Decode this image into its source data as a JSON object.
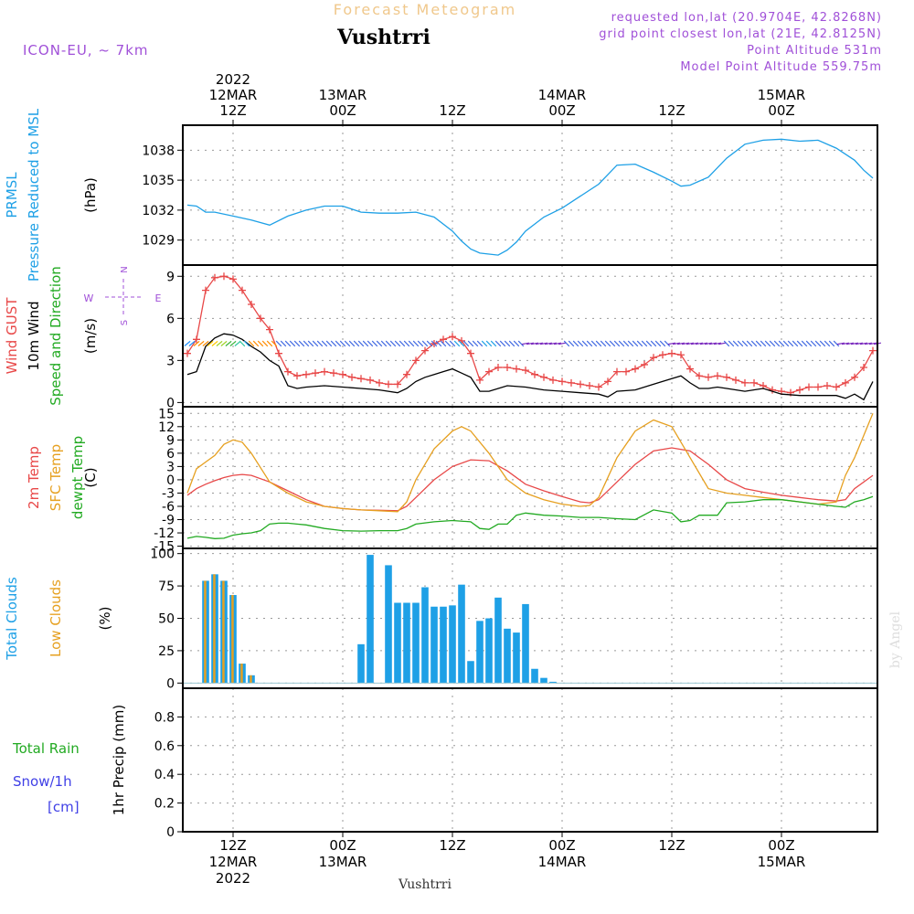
{
  "header": {
    "product": "Forecast Meteogram",
    "location": "Vushtrri",
    "model": "ICON-EU, ~ 7km",
    "requested": "requested lon,lat (20.9704E, 42.8268N)",
    "gridpoint": "grid point closest lon,lat (21E, 42.8125N)",
    "point_alt": "Point Altitude 531m",
    "model_alt": "Model Point Altitude 559.75m",
    "footer_location": "Vushtrri",
    "credit": "by Angel"
  },
  "time_axis": {
    "top": [
      {
        "t": 12,
        "l1": "2022",
        "l2": "12MAR",
        "l3": "12Z"
      },
      {
        "t": 24,
        "l1": "",
        "l2": "13MAR",
        "l3": "00Z"
      },
      {
        "t": 36,
        "l1": "",
        "l2": "",
        "l3": "12Z"
      },
      {
        "t": 48,
        "l1": "",
        "l2": "14MAR",
        "l3": "00Z"
      },
      {
        "t": 60,
        "l1": "",
        "l2": "",
        "l3": "12Z"
      },
      {
        "t": 72,
        "l1": "",
        "l2": "15MAR",
        "l3": "00Z"
      }
    ],
    "bottom": [
      {
        "t": 12,
        "l1": "12Z",
        "l2": "12MAR",
        "l3": "2022"
      },
      {
        "t": 24,
        "l1": "00Z",
        "l2": "13MAR",
        "l3": ""
      },
      {
        "t": 36,
        "l1": "12Z",
        "l2": "",
        "l3": ""
      },
      {
        "t": 48,
        "l1": "00Z",
        "l2": "14MAR",
        "l3": ""
      },
      {
        "t": 60,
        "l1": "12Z",
        "l2": "",
        "l3": ""
      },
      {
        "t": 72,
        "l1": "00Z",
        "l2": "15MAR",
        "l3": ""
      }
    ]
  },
  "chart_data": [
    {
      "type": "line",
      "id": "pressure",
      "ylabels": [
        {
          "text": "PRMSL",
          "color": "#1ea0e6"
        },
        {
          "text": "Pressure Reduced to MSL",
          "color": "#1ea0e6"
        }
      ],
      "unit": "(hPa)",
      "ylim": [
        1026.5,
        1040.5
      ],
      "yticks": [
        1029,
        1032,
        1035,
        1038
      ],
      "grid": true,
      "series": [
        {
          "color": "#1ea0e6",
          "x": [
            7,
            8,
            9,
            10,
            12,
            14,
            16,
            18,
            20,
            22,
            24,
            26,
            28,
            30,
            32,
            34,
            36,
            37,
            38,
            39,
            40,
            41,
            42,
            43,
            44,
            46,
            48,
            50,
            52,
            54,
            56,
            58,
            60,
            61,
            62,
            64,
            66,
            68,
            70,
            72,
            74,
            76,
            78,
            80,
            81,
            82
          ],
          "y": [
            1032.5,
            1032.4,
            1031.8,
            1031.8,
            1031.4,
            1031.0,
            1030.5,
            1031.4,
            1032.0,
            1032.4,
            1032.4,
            1031.8,
            1031.7,
            1031.7,
            1031.8,
            1031.3,
            1029.9,
            1028.9,
            1028.1,
            1027.7,
            1027.6,
            1027.5,
            1028.0,
            1028.8,
            1029.9,
            1031.3,
            1032.2,
            1033.4,
            1034.6,
            1036.5,
            1036.6,
            1035.8,
            1034.9,
            1034.4,
            1034.5,
            1035.3,
            1037.2,
            1038.6,
            1039.0,
            1039.1,
            1038.9,
            1039.0,
            1038.2,
            1037.0,
            1036.0,
            1035.2
          ]
        }
      ]
    },
    {
      "type": "line",
      "id": "wind",
      "ylabels": [
        {
          "text": "Wind GUST",
          "color": "#e84848"
        },
        {
          "text": "10m Wind",
          "color": "#000000"
        },
        {
          "text": "Speed and Direction",
          "color": "#22aa22"
        }
      ],
      "unit": "(m/s)",
      "compass": {
        "n": "N",
        "s": "S",
        "w": "W",
        "e": "E"
      },
      "ylim": [
        -0.3,
        9.8
      ],
      "yticks": [
        0,
        3,
        6,
        9
      ],
      "grid": true,
      "series": [
        {
          "name": "gust",
          "color": "#e84848",
          "markers": true,
          "x": [
            7,
            8,
            9,
            10,
            11,
            12,
            13,
            14,
            15,
            16,
            17,
            18,
            19,
            20,
            21,
            22,
            23,
            24,
            25,
            26,
            27,
            28,
            29,
            30,
            31,
            32,
            33,
            34,
            35,
            36,
            37,
            38,
            39,
            40,
            41,
            42,
            43,
            44,
            45,
            46,
            47,
            48,
            49,
            50,
            51,
            52,
            53,
            54,
            55,
            56,
            57,
            58,
            59,
            60,
            61,
            62,
            63,
            64,
            65,
            66,
            67,
            68,
            69,
            70,
            71,
            72,
            73,
            74,
            75,
            76,
            77,
            78,
            79,
            80,
            81,
            82
          ],
          "y": [
            3.5,
            4.5,
            8.0,
            8.9,
            9.0,
            8.8,
            8.0,
            7.0,
            6.0,
            5.2,
            3.5,
            2.2,
            1.9,
            2.0,
            2.1,
            2.2,
            2.1,
            2.0,
            1.8,
            1.7,
            1.6,
            1.4,
            1.3,
            1.3,
            2.0,
            3.0,
            3.7,
            4.2,
            4.5,
            4.7,
            4.4,
            3.5,
            1.6,
            2.2,
            2.5,
            2.5,
            2.4,
            2.3,
            2.0,
            1.8,
            1.6,
            1.5,
            1.4,
            1.3,
            1.2,
            1.1,
            1.5,
            2.2,
            2.2,
            2.4,
            2.7,
            3.2,
            3.4,
            3.5,
            3.4,
            2.4,
            1.9,
            1.8,
            1.9,
            1.8,
            1.6,
            1.4,
            1.4,
            1.2,
            0.9,
            0.8,
            0.7,
            0.9,
            1.1,
            1.1,
            1.2,
            1.1,
            1.4,
            1.8,
            2.5,
            3.7
          ]
        },
        {
          "name": "wind10m",
          "color": "#000000",
          "markers": false,
          "x": [
            7,
            8,
            9,
            10,
            11,
            12,
            13,
            14,
            15,
            16,
            17,
            18,
            19,
            20,
            22,
            24,
            26,
            28,
            30,
            31,
            32,
            33,
            34,
            35,
            36,
            37,
            38,
            39,
            40,
            42,
            44,
            46,
            48,
            50,
            52,
            53,
            54,
            56,
            58,
            60,
            61,
            62,
            63,
            64,
            65,
            66,
            68,
            70,
            72,
            74,
            76,
            78,
            79,
            80,
            81,
            82
          ],
          "y": [
            2.0,
            2.2,
            4.0,
            4.6,
            4.9,
            4.8,
            4.5,
            4.0,
            3.6,
            3.0,
            2.6,
            1.2,
            1.0,
            1.1,
            1.2,
            1.1,
            1.0,
            0.9,
            0.7,
            1.0,
            1.5,
            1.8,
            2.0,
            2.2,
            2.4,
            2.1,
            1.8,
            0.8,
            0.8,
            1.2,
            1.1,
            0.9,
            0.8,
            0.7,
            0.6,
            0.4,
            0.8,
            0.9,
            1.3,
            1.7,
            1.9,
            1.4,
            1.0,
            1.0,
            1.1,
            1.0,
            0.8,
            1.0,
            0.6,
            0.5,
            0.5,
            0.5,
            0.3,
            0.6,
            0.2,
            1.5
          ]
        }
      ],
      "arrows": {
        "y": 4.2,
        "t_start": 7,
        "t_step": 0.5,
        "colors": [
          "#1e90ff",
          "#ff8c00",
          "#ffc800",
          "#a0d228",
          "#3cb43c",
          "#32c8a0",
          "#1ea0e6",
          "#4169e1",
          "#7b2cbf"
        ],
        "codes": "00111223344556111111777777777777777777777777777777777777777667777666777777888888888777777777777777777777778888888888887777777777777777777777777888888888888888888888888888888888888877777777777777777777"
      }
    },
    {
      "type": "line",
      "id": "temperature",
      "ylabels": [
        {
          "text": "2m Temp",
          "color": "#e84848"
        },
        {
          "text": "SFC Temp",
          "color": "#e6a020"
        },
        {
          "text": "dewpt Temp",
          "color": "#22aa22"
        }
      ],
      "unit": "(C)",
      "ylim": [
        -15.5,
        16.5
      ],
      "yticks": [
        -15,
        -12,
        -9,
        -6,
        -3,
        0,
        3,
        6,
        9,
        12,
        15
      ],
      "grid": true,
      "series": [
        {
          "name": "2m",
          "color": "#e84848",
          "x": [
            7,
            8,
            9,
            10,
            11,
            12,
            13,
            14,
            16,
            18,
            20,
            22,
            24,
            26,
            28,
            30,
            31,
            32,
            34,
            36,
            38,
            40,
            42,
            44,
            46,
            48,
            50,
            51,
            52,
            54,
            56,
            58,
            60,
            62,
            64,
            66,
            68,
            70,
            72,
            74,
            76,
            78,
            79,
            80,
            82
          ],
          "y": [
            -3.5,
            -2.0,
            -1.0,
            -0.2,
            0.5,
            1.0,
            1.2,
            1.0,
            -0.5,
            -2.5,
            -4.5,
            -6.0,
            -6.5,
            -6.8,
            -6.9,
            -7.0,
            -6.0,
            -4.0,
            0.0,
            3.0,
            4.5,
            4.3,
            2.0,
            -1.0,
            -2.5,
            -3.8,
            -5.0,
            -5.2,
            -4.5,
            -0.5,
            3.5,
            6.5,
            7.2,
            6.5,
            3.5,
            0.0,
            -2.0,
            -2.8,
            -3.5,
            -4.0,
            -4.5,
            -4.8,
            -4.5,
            -2.0,
            1.0
          ]
        },
        {
          "name": "sfc",
          "color": "#e6a020",
          "x": [
            7,
            8,
            9,
            10,
            11,
            12,
            13,
            14,
            16,
            18,
            20,
            22,
            24,
            26,
            28,
            30,
            31,
            32,
            34,
            36,
            37,
            38,
            40,
            42,
            44,
            46,
            48,
            50,
            51,
            52,
            54,
            56,
            58,
            60,
            62,
            64,
            66,
            68,
            70,
            72,
            74,
            76,
            78,
            79,
            80,
            82
          ],
          "y": [
            -3.0,
            2.5,
            4.0,
            5.5,
            8.0,
            9.0,
            8.5,
            6.0,
            -0.5,
            -3.0,
            -5.0,
            -6.0,
            -6.5,
            -6.8,
            -7.0,
            -7.2,
            -5.0,
            0.0,
            7.0,
            11.0,
            12.0,
            11.0,
            6.0,
            0.0,
            -3.0,
            -4.5,
            -5.5,
            -6.0,
            -5.8,
            -4.0,
            5.0,
            11.0,
            13.5,
            12.0,
            5.0,
            -2.0,
            -3.0,
            -3.5,
            -4.0,
            -4.5,
            -5.0,
            -5.5,
            -5.0,
            1.0,
            5.0,
            15.0
          ]
        },
        {
          "name": "dewpt",
          "color": "#22aa22",
          "x": [
            7,
            8,
            9,
            10,
            11,
            12,
            13,
            14,
            15,
            16,
            17,
            18,
            19,
            20,
            22,
            24,
            26,
            28,
            30,
            31,
            32,
            34,
            36,
            38,
            39,
            40,
            41,
            42,
            43,
            44,
            46,
            48,
            50,
            52,
            54,
            56,
            58,
            60,
            61,
            62,
            63,
            64,
            65,
            66,
            68,
            70,
            72,
            74,
            76,
            78,
            79,
            80,
            81,
            82
          ],
          "y": [
            -13.2,
            -12.8,
            -13.0,
            -13.3,
            -13.2,
            -12.5,
            -12.2,
            -12.0,
            -11.5,
            -10.0,
            -9.8,
            -9.8,
            -10.0,
            -10.2,
            -11.0,
            -11.5,
            -11.6,
            -11.5,
            -11.5,
            -11.0,
            -10.0,
            -9.5,
            -9.2,
            -9.5,
            -11.0,
            -11.2,
            -10.0,
            -10.0,
            -8.0,
            -7.5,
            -8.0,
            -8.2,
            -8.5,
            -8.5,
            -8.8,
            -9.0,
            -6.8,
            -7.5,
            -9.5,
            -9.2,
            -8.0,
            -8.0,
            -8.0,
            -5.2,
            -5.0,
            -4.5,
            -4.5,
            -5.0,
            -5.5,
            -6.0,
            -6.2,
            -5.0,
            -4.5,
            -3.8
          ]
        }
      ]
    },
    {
      "type": "bar",
      "id": "clouds",
      "ylabels": [
        {
          "text": "Total Clouds",
          "color": "#1ea0e6"
        },
        {
          "text": "Low Clouds",
          "color": "#e6a020"
        }
      ],
      "unit": "(%)",
      "ylim": [
        -4,
        104
      ],
      "yticks": [
        0,
        25,
        50,
        75,
        100
      ],
      "grid": true,
      "series": [
        {
          "name": "total",
          "color": "#1ea0e6",
          "x": [
            9,
            10,
            11,
            12,
            13,
            14,
            26,
            27,
            29,
            30,
            31,
            32,
            33,
            34,
            35,
            36,
            37,
            38,
            39,
            40,
            41,
            42,
            43,
            44,
            45,
            46,
            47
          ],
          "values": [
            79,
            84,
            79,
            68,
            15,
            6,
            30,
            99,
            91,
            62,
            62,
            62,
            74,
            59,
            59,
            60,
            76,
            17,
            48,
            50,
            66,
            42,
            39,
            61,
            11,
            4,
            1
          ]
        },
        {
          "name": "low",
          "color": "#e6a020",
          "x": [
            9,
            10,
            11,
            12,
            13,
            14
          ],
          "values": [
            79,
            84,
            79,
            68,
            15,
            6
          ]
        }
      ]
    },
    {
      "type": "bar",
      "id": "precip",
      "ylabels": [
        {
          "text": "Total  Rain",
          "color": "#22aa22"
        },
        {
          "text": "Snow/1h",
          "color": "#4040e6"
        },
        {
          "text": "[cm]",
          "color": "#4040e6"
        }
      ],
      "unit": "1hr Precip (mm)",
      "ylim": [
        0,
        1.0
      ],
      "yticks": [
        0,
        0.2,
        0.4,
        0.6,
        0.8
      ],
      "grid": true,
      "series": [
        {
          "name": "total",
          "color": "#22aa22",
          "x": [],
          "values": []
        }
      ]
    }
  ]
}
